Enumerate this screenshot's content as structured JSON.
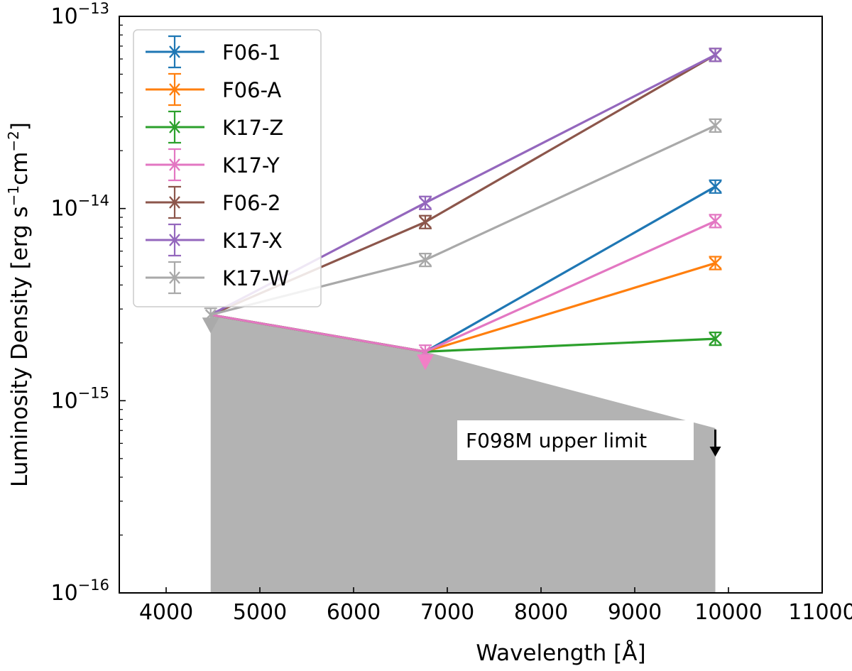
{
  "chart_data": {
    "type": "line",
    "title": "",
    "xlabel": "Wavelength [Å]",
    "ylabel_parts": [
      "Luminosity Density [erg s",
      "−1",
      "cm",
      "−2",
      "]"
    ],
    "xlim": [
      3500,
      11000
    ],
    "ylim": [
      1e-16,
      1e-13
    ],
    "yscale": "log",
    "x_ticks": [
      4000,
      5000,
      6000,
      7000,
      8000,
      9000,
      10000,
      11000
    ],
    "x_tick_labels": [
      "4000",
      "5000",
      "6000",
      "7000",
      "8000",
      "9000",
      "10000",
      "11000"
    ],
    "y_ticks": [
      {
        "value": 1e-16,
        "base": "10",
        "exp": "−16"
      },
      {
        "value": 1e-15,
        "base": "10",
        "exp": "−15"
      },
      {
        "value": 1e-14,
        "base": "10",
        "exp": "−14"
      },
      {
        "value": 1e-13,
        "base": "10",
        "exp": "−13"
      }
    ],
    "legend_position": "upper-left",
    "upper_limit_region": {
      "x": [
        4475,
        6765,
        9860
      ],
      "y": [
        2.8e-15,
        1.8e-15,
        7.2e-16
      ],
      "color": "#b3b3b3"
    },
    "upper_limit_markers": [
      {
        "x": 4475,
        "y": 2.8e-15,
        "color": "#aaaaaa"
      },
      {
        "x": 6765,
        "y": 1.8e-15,
        "color": "#f27fc6"
      }
    ],
    "annotation": {
      "text": "F098M upper limit",
      "x": 9860,
      "y": 7.2e-16,
      "arrow_color": "#000000"
    },
    "series": [
      {
        "name": "F06-1",
        "color": "#1f77b4",
        "x": [
          4475,
          6765,
          9860
        ],
        "y": [
          2.8e-15,
          1.8e-15,
          1.3e-14
        ]
      },
      {
        "name": "F06-A",
        "color": "#ff7f0e",
        "x": [
          4475,
          6765,
          9860
        ],
        "y": [
          2.8e-15,
          1.8e-15,
          5.2e-15
        ]
      },
      {
        "name": "K17-Z",
        "color": "#2ca02c",
        "x": [
          4475,
          6765,
          9860
        ],
        "y": [
          2.8e-15,
          1.8e-15,
          2.1e-15
        ]
      },
      {
        "name": "K17-Y",
        "color": "#e377c2",
        "x": [
          4475,
          6765,
          9860
        ],
        "y": [
          2.8e-15,
          1.8e-15,
          8.6e-15
        ]
      },
      {
        "name": "F06-2",
        "color": "#8c564b",
        "x": [
          4475,
          6765,
          9860
        ],
        "y": [
          2.8e-15,
          8.5e-15,
          6.3e-14
        ]
      },
      {
        "name": "K17-X",
        "color": "#9467bd",
        "x": [
          4475,
          6765,
          9860
        ],
        "y": [
          2.8e-15,
          1.07e-14,
          6.3e-14
        ]
      },
      {
        "name": "K17-W",
        "color": "#a9a9a9",
        "x": [
          4475,
          6765,
          9860
        ],
        "y": [
          2.8e-15,
          5.4e-15,
          2.7e-14
        ]
      }
    ]
  }
}
